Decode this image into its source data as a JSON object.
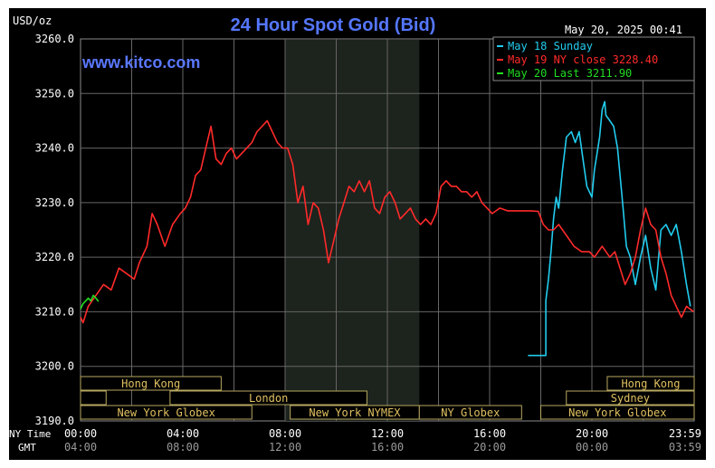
{
  "chart_data": {
    "type": "line",
    "title": "24 Hour Spot Gold (Bid)",
    "website": "www.kitco.com",
    "timestamp": "May 20, 2025 00:41",
    "ylabel": "USD/oz",
    "ylim": [
      3190,
      3260
    ],
    "y_ticks": [
      "3260.0",
      "3250.0",
      "3240.0",
      "3230.0",
      "3220.0",
      "3210.0",
      "3200.0",
      "3190.0"
    ],
    "x_axis": {
      "ny_label": "NY Time",
      "gmt_label": "GMT",
      "ny_ticks": [
        "00:00",
        "04:00",
        "08:00",
        "12:00",
        "16:00",
        "20:00",
        "23:59"
      ],
      "gmt_ticks": [
        "04:00",
        "08:00",
        "12:00",
        "16:00",
        "20:00",
        "00:00",
        "03:59"
      ],
      "hours": [
        0,
        4,
        8,
        12,
        16,
        20,
        23.98
      ]
    },
    "grid": true,
    "legend_position": "top-right",
    "legend": [
      {
        "label": "May 18 Sunday",
        "color": "#22ccee"
      },
      {
        "label": "May 19 NY close 3228.40",
        "color": "#ff2a2a"
      },
      {
        "label": "May 20 Last 3211.90",
        "color": "#22dd22"
      }
    ],
    "shaded_session": {
      "start_hour": 8.0,
      "end_hour": 13.25
    },
    "sessions": [
      {
        "label": "Hong Kong",
        "row": 1,
        "start": 0,
        "end": 5.5
      },
      {
        "label": "Hong Kong",
        "row": 1,
        "start": 20.6,
        "end": 24
      },
      {
        "label": "",
        "row": 2,
        "start": 0,
        "end": 1.0
      },
      {
        "label": "London",
        "row": 2,
        "start": 3.5,
        "end": 11.2
      },
      {
        "label": "Sydney",
        "row": 2,
        "start": 19.0,
        "end": 24
      },
      {
        "label": "New York Globex",
        "row": 3,
        "start": 0,
        "end": 6.7
      },
      {
        "label": "New York NYMEX",
        "row": 3,
        "start": 8.2,
        "end": 13.25
      },
      {
        "label": "NY Globex",
        "row": 3,
        "start": 13.25,
        "end": 17.25
      },
      {
        "label": "New York Globex",
        "row": 3,
        "start": 18.0,
        "end": 24
      }
    ],
    "series": [
      {
        "name": "May 18 Sunday",
        "color": "#22ccee",
        "x": [
          17.5,
          18.2,
          18.2,
          18.3,
          18.4,
          18.5,
          18.6,
          18.7,
          18.85,
          19.0,
          19.2,
          19.35,
          19.5,
          19.65,
          19.8,
          20.0,
          20.1,
          20.3,
          20.4,
          20.5,
          20.55,
          20.7,
          20.85,
          21.0,
          21.2,
          21.35,
          21.5,
          21.7,
          21.9,
          22.1,
          22.3,
          22.5,
          22.7,
          22.9,
          23.1,
          23.3,
          23.5,
          23.7,
          23.85
        ],
        "y": [
          3202.0,
          3202.0,
          3212.0,
          3216.0,
          3221.0,
          3227.0,
          3231.0,
          3229.0,
          3236.0,
          3242.0,
          3243.0,
          3241.0,
          3243.0,
          3238.0,
          3233.0,
          3231.0,
          3236.0,
          3242.0,
          3247.0,
          3248.5,
          3246.0,
          3245.0,
          3244.0,
          3240.0,
          3230.0,
          3222.0,
          3220.0,
          3215.0,
          3220.0,
          3224.0,
          3218.0,
          3214.0,
          3225.0,
          3226.0,
          3224.0,
          3226.0,
          3221.0,
          3215.0,
          3211.0
        ]
      },
      {
        "name": "May 19 NY close 3228.40",
        "color": "#ff2a2a",
        "x": [
          0.0,
          0.1,
          0.3,
          0.6,
          0.9,
          1.2,
          1.5,
          1.8,
          2.1,
          2.3,
          2.6,
          2.8,
          3.0,
          3.3,
          3.6,
          3.9,
          4.1,
          4.3,
          4.5,
          4.7,
          4.9,
          5.1,
          5.3,
          5.5,
          5.7,
          5.9,
          6.1,
          6.3,
          6.5,
          6.7,
          6.9,
          7.1,
          7.3,
          7.5,
          7.7,
          7.9,
          8.1,
          8.3,
          8.5,
          8.7,
          8.9,
          9.1,
          9.3,
          9.5,
          9.7,
          9.9,
          10.1,
          10.3,
          10.5,
          10.7,
          10.9,
          11.1,
          11.3,
          11.5,
          11.7,
          11.9,
          12.1,
          12.3,
          12.5,
          12.7,
          12.9,
          13.1,
          13.3,
          13.5,
          13.7,
          13.9,
          14.1,
          14.3,
          14.5,
          14.7,
          14.9,
          15.1,
          15.3,
          15.5,
          15.7,
          15.9,
          16.1,
          16.4,
          16.7,
          17.0,
          17.3,
          17.6,
          17.9,
          18.1,
          18.3,
          18.5,
          18.7,
          19.0,
          19.3,
          19.6,
          19.9,
          20.1,
          20.4,
          20.7,
          20.9,
          21.1,
          21.3,
          21.5,
          21.7,
          21.9,
          22.1,
          22.3,
          22.5,
          22.7,
          22.9,
          23.1,
          23.3,
          23.5,
          23.7,
          23.98
        ],
        "y": [
          3209.0,
          3208.0,
          3211.0,
          3213.0,
          3215.0,
          3214.0,
          3218.0,
          3217.0,
          3216.0,
          3219.0,
          3222.0,
          3228.0,
          3226.0,
          3222.0,
          3226.0,
          3228.0,
          3229.0,
          3231.0,
          3235.0,
          3236.0,
          3240.0,
          3244.0,
          3238.0,
          3237.0,
          3239.0,
          3240.0,
          3238.0,
          3239.0,
          3240.0,
          3241.0,
          3243.0,
          3244.0,
          3245.0,
          3243.0,
          3241.0,
          3240.0,
          3240.0,
          3237.0,
          3230.0,
          3233.0,
          3226.0,
          3230.0,
          3229.0,
          3225.0,
          3219.0,
          3223.0,
          3227.0,
          3230.0,
          3233.0,
          3232.0,
          3234.0,
          3232.0,
          3234.0,
          3229.0,
          3228.0,
          3231.0,
          3232.0,
          3230.0,
          3227.0,
          3228.0,
          3229.0,
          3227.0,
          3226.0,
          3227.0,
          3226.0,
          3228.0,
          3233.0,
          3234.0,
          3233.0,
          3233.0,
          3232.0,
          3232.0,
          3231.0,
          3232.0,
          3230.0,
          3229.0,
          3228.0,
          3229.0,
          3228.5,
          3228.5,
          3228.5,
          3228.5,
          3228.4,
          3226.0,
          3225.0,
          3225.0,
          3226.0,
          3224.0,
          3222.0,
          3221.0,
          3221.0,
          3220.0,
          3222.0,
          3220.0,
          3221.0,
          3218.0,
          3215.0,
          3217.0,
          3220.0,
          3225.0,
          3229.0,
          3226.0,
          3225.0,
          3220.0,
          3217.0,
          3213.0,
          3211.0,
          3209.0,
          3211.0,
          3210.0
        ]
      },
      {
        "name": "May 20 Last 3211.90",
        "color": "#22dd22",
        "x": [
          0.0,
          0.1,
          0.2,
          0.3,
          0.4,
          0.5,
          0.6,
          0.7
        ],
        "y": [
          3210.5,
          3211.5,
          3212.0,
          3212.5,
          3212.0,
          3213.0,
          3212.5,
          3211.9
        ]
      }
    ]
  }
}
